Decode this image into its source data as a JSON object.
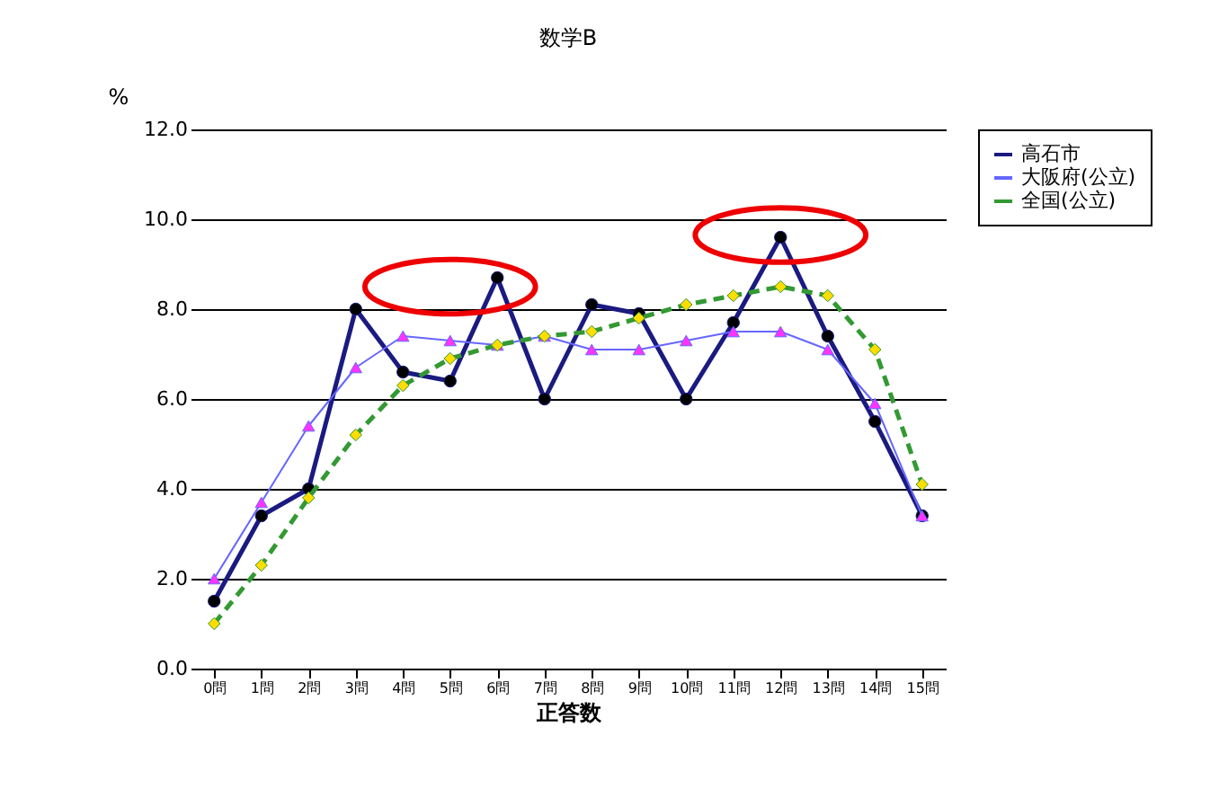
{
  "chart_data": {
    "type": "line",
    "title": "数学B",
    "ylabel": "%",
    "xlabel": "正答数",
    "categories": [
      "0問",
      "1問",
      "2問",
      "3問",
      "4問",
      "5問",
      "6問",
      "7問",
      "8問",
      "9問",
      "10問",
      "11問",
      "12問",
      "13問",
      "14問",
      "15問"
    ],
    "series": [
      {
        "name": "高石市",
        "color": "#1a1a80",
        "marker": "circle",
        "line_style": "solid",
        "values": [
          1.5,
          3.4,
          4.0,
          8.0,
          6.6,
          6.4,
          8.7,
          6.0,
          8.1,
          7.9,
          6.0,
          7.7,
          9.6,
          7.4,
          5.5,
          3.4
        ]
      },
      {
        "name": "大阪府(公立)",
        "color": "#6666ff",
        "marker": "triangle",
        "line_style": "solid",
        "values": [
          2.0,
          3.7,
          5.4,
          6.7,
          7.4,
          7.3,
          7.2,
          7.4,
          7.1,
          7.1,
          7.3,
          7.5,
          7.5,
          7.1,
          5.9,
          3.4
        ]
      },
      {
        "name": "全国(公立)",
        "color": "#339933",
        "marker": "diamond",
        "line_style": "dashed",
        "values": [
          1.0,
          2.3,
          3.8,
          5.2,
          6.3,
          6.9,
          7.2,
          7.4,
          7.5,
          7.8,
          8.1,
          8.3,
          8.5,
          8.3,
          7.1,
          4.1
        ]
      }
    ],
    "ylim": [
      0,
      12
    ],
    "yticks": [
      {
        "value": 0,
        "label": "0.0"
      },
      {
        "value": 2,
        "label": "2.0"
      },
      {
        "value": 4,
        "label": "4.0"
      },
      {
        "value": 6,
        "label": "6.0"
      },
      {
        "value": 8,
        "label": "8.0"
      },
      {
        "value": 10,
        "label": "10.0"
      },
      {
        "value": 12,
        "label": "12.0"
      }
    ],
    "grid": "y",
    "legend": "right"
  }
}
